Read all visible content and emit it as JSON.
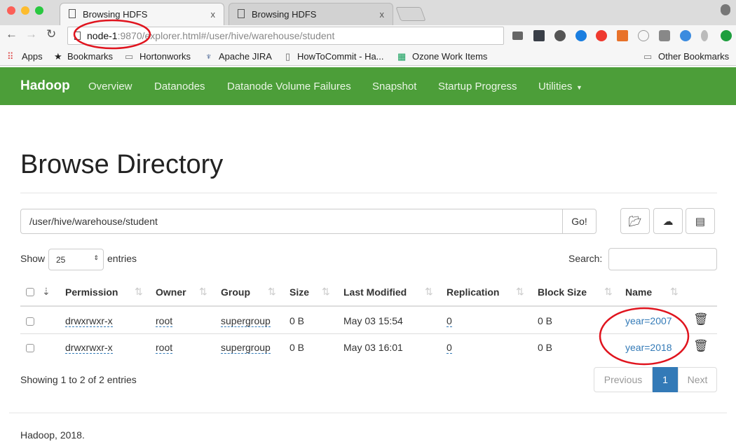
{
  "browser": {
    "tabs": [
      {
        "title": "Browsing HDFS",
        "close": "x"
      },
      {
        "title": "Browsing HDFS",
        "close": "x"
      }
    ],
    "url_host": "node-1",
    "url_rest": ":9870/explorer.html#/user/hive/warehouse/student",
    "bookmarks": [
      "Apps",
      "Bookmarks",
      "Hortonworks",
      "Apache JIRA",
      "HowToCommit - Ha...",
      "Ozone Work Items"
    ],
    "other_bookmarks": "Other Bookmarks"
  },
  "nav": {
    "brand": "Hadoop",
    "items": [
      "Overview",
      "Datanodes",
      "Datanode Volume Failures",
      "Snapshot",
      "Startup Progress",
      "Utilities"
    ]
  },
  "page": {
    "title": "Browse Directory",
    "path": "/user/hive/warehouse/student",
    "go": "Go!",
    "show": "Show",
    "entries_value": "25",
    "entries": "entries",
    "search_label": "Search:",
    "columns": [
      "Permission",
      "Owner",
      "Group",
      "Size",
      "Last Modified",
      "Replication",
      "Block Size",
      "Name"
    ],
    "rows": [
      {
        "permission": "drwxrwxr-x",
        "owner": "root",
        "group": "supergroup",
        "size": "0 B",
        "modified": "May 03 15:54",
        "replication": "0",
        "block_size": "0 B",
        "name": "year=2007"
      },
      {
        "permission": "drwxrwxr-x",
        "owner": "root",
        "group": "supergroup",
        "size": "0 B",
        "modified": "May 03 16:01",
        "replication": "0",
        "block_size": "0 B",
        "name": "year=2018"
      }
    ],
    "info": "Showing 1 to 2 of 2 entries",
    "pagination": {
      "previous": "Previous",
      "current": "1",
      "next": "Next"
    },
    "footer": "Hadoop, 2018."
  },
  "colors": {
    "nav": "#4c9e39",
    "link": "#337ab7",
    "annotation": "#e0141e"
  }
}
